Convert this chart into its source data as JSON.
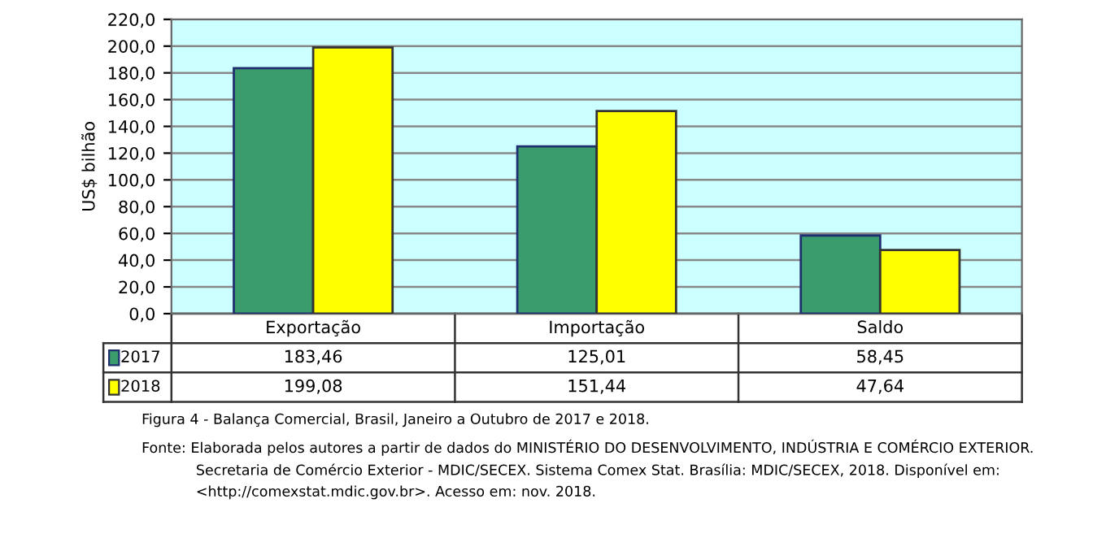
{
  "chart_data": {
    "type": "bar",
    "ylabel": "US$ bilhão",
    "categories": [
      "Exportação",
      "Importação",
      "Saldo"
    ],
    "series": [
      {
        "name": "2017",
        "color": "#3a9b6c",
        "values": [
          183.46,
          125.01,
          58.45
        ],
        "value_labels": [
          "183,46",
          "125,01",
          "58,45"
        ]
      },
      {
        "name": "2018",
        "color": "#ffff00",
        "values": [
          199.08,
          151.44,
          47.64
        ],
        "value_labels": [
          "199,08",
          "151,44",
          "47,64"
        ]
      }
    ],
    "ylim": [
      0,
      220
    ],
    "yticks": [
      {
        "value": 0,
        "label": "0,0"
      },
      {
        "value": 20,
        "label": "20,0"
      },
      {
        "value": 40,
        "label": "40,0"
      },
      {
        "value": 60,
        "label": "60,0"
      },
      {
        "value": 80,
        "label": "80,0"
      },
      {
        "value": 100,
        "label": "100,0"
      },
      {
        "value": 120,
        "label": "120,0"
      },
      {
        "value": 140,
        "label": "140,0"
      },
      {
        "value": 160,
        "label": "160,0"
      },
      {
        "value": 180,
        "label": "180,0"
      },
      {
        "value": 200,
        "label": "200,0"
      },
      {
        "value": 220,
        "label": "220,0"
      }
    ],
    "grid": "y",
    "legend": "bottom",
    "annotations": [
      "Figura 4 - Balança Comercial, Brasil, Janeiro a Outubro de 2017 e 2018.",
      "Fonte: Elaborada pelos autores a partir de dados do MINISTÉRIO DO DESENVOLVIMENTO, INDÚSTRIA E COMÉRCIO EXTERIOR.\n            Secretaria de Comércio Exterior - MDIC/SECEX. Sistema Comex Stat. Brasília: MDIC/SECEX, 2018. Disponível em:\n            <http://comexstat.mdic.gov.br>. Acesso em: nov. 2018."
    ]
  }
}
